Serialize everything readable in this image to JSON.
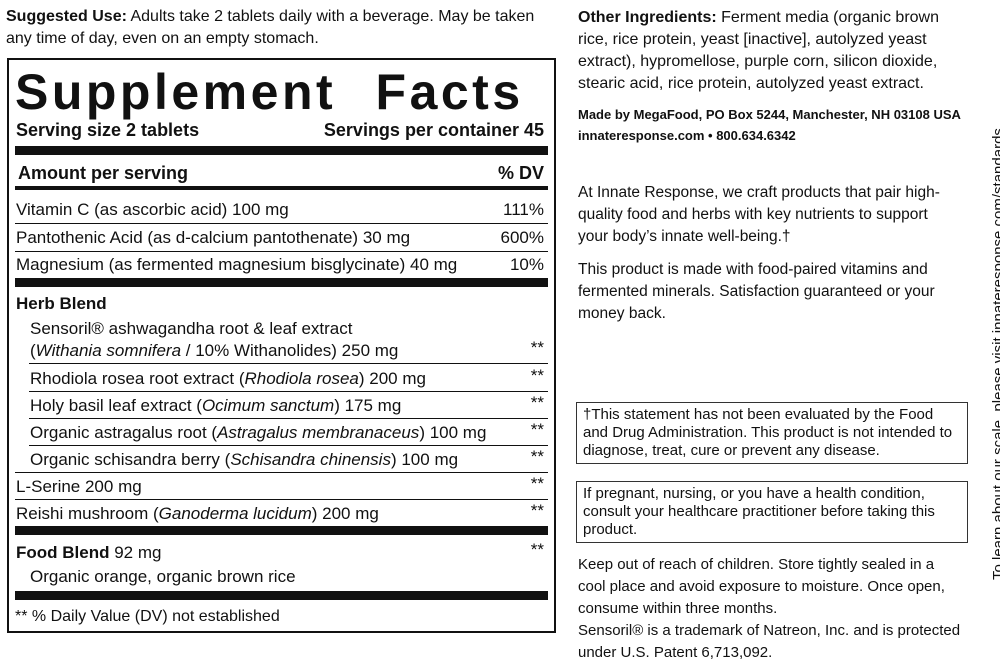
{
  "suggested_use": {
    "label": "Suggested Use:",
    "text": "Adults take 2 tablets daily with a beverage. May be taken any time of day, even on an empty stomach."
  },
  "facts": {
    "title": "Supplement Facts",
    "serving_size": "Serving size 2 tablets",
    "servings_per_container": "Servings per container 45",
    "amount_header": "Amount per serving",
    "dv_header": "% DV",
    "nutrients": [
      {
        "name": "Vitamin C (as ascorbic acid) 100 mg",
        "dv": "111%"
      },
      {
        "name": "Pantothenic Acid (as d-calcium pantothenate) 30 mg",
        "dv": "600%"
      },
      {
        "name": "Magnesium (as fermented magnesium bisglycinate) 40 mg",
        "dv": "10%"
      }
    ],
    "herb_blend": {
      "title": "Herb Blend",
      "items": [
        {
          "parts": [
            "Sensoril® ashwagandha root & leaf extract",
            "(",
            "Withania somnifera",
            " / 10% Withanolides) 250 mg"
          ],
          "dv": "**"
        },
        {
          "parts": [
            "Rhodiola rosea root extract (",
            "Rhodiola rosea",
            ") 200 mg"
          ],
          "dv": "**"
        },
        {
          "parts": [
            "Holy basil leaf extract (",
            "Ocimum sanctum",
            ") 175 mg"
          ],
          "dv": "**"
        },
        {
          "parts": [
            "Organic astragalus root (",
            "Astragalus membranaceus",
            ") 100 mg"
          ],
          "dv": "**"
        },
        {
          "parts": [
            "Organic schisandra berry (",
            "Schisandra chinensis",
            ") 100 mg"
          ],
          "dv": "**"
        }
      ]
    },
    "other_items": [
      {
        "parts": [
          "L-Serine 200 mg"
        ],
        "dv": "**"
      },
      {
        "parts": [
          "Reishi mushroom (",
          "Ganoderma lucidum",
          ") 200 mg"
        ],
        "dv": "**"
      }
    ],
    "food_blend": {
      "title": "Food Blend",
      "amount": "92 mg",
      "dv": "**",
      "contents": "Organic orange, organic brown rice"
    },
    "footnote": "** % Daily Value (DV) not established"
  },
  "other_ingredients": {
    "label": "Other Ingredients:",
    "text": "Ferment media (organic brown rice, rice protein, yeast [inactive], autolyzed yeast extract), hypromellose, purple corn, silicon dioxide, stearic acid, rice protein, autolyzed yeast extract."
  },
  "made_by": "Made by MegaFood, PO Box 5244, Manchester, NH 03108 USA",
  "contact": "innateresponse.com • 800.634.6342",
  "about": "At Innate Response, we craft products that pair high-quality food and herbs with key nutrients to support your body’s innate well-being.†",
  "product_note": "This product is made with food-paired vitamins and fermented minerals. Satisfaction guaranteed or your money back.",
  "fda_statement": "†This statement has not been evaluated by the Food and Drug Administration. This product is not intended to diagnose, treat, cure or prevent any disease.",
  "warning": "If pregnant, nursing, or you have a health condition, consult your healthcare practitioner before taking this product.",
  "storage": "Keep out of reach of children. Store tightly sealed in a cool place and avoid exposure to moisture. Once open, consume within three months.",
  "trademark": "Sensoril® is a trademark of Natreon, Inc. and is protected under U.S. Patent 6,713,092.",
  "side_text": "To learn about our scale, please visit innateresponse.com/standards"
}
